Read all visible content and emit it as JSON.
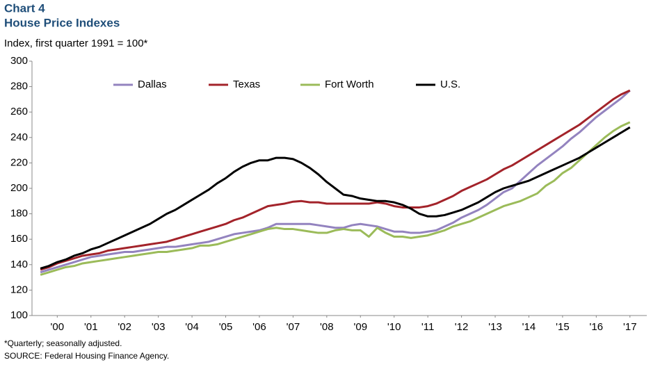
{
  "chart_data": {
    "type": "line",
    "title": "Chart 4",
    "subtitle": "House Price Indexes",
    "y_label": "Index, first quarter 1991 = 100*",
    "notes": [
      "*Quarterly; seasonally adjusted.",
      "SOURCE: Federal Housing Finance Agency."
    ],
    "x": [
      2000,
      2000.25,
      2000.5,
      2000.75,
      2001,
      2001.25,
      2001.5,
      2001.75,
      2002,
      2002.25,
      2002.5,
      2002.75,
      2003,
      2003.25,
      2003.5,
      2003.75,
      2004,
      2004.25,
      2004.5,
      2004.75,
      2005,
      2005.25,
      2005.5,
      2005.75,
      2006,
      2006.25,
      2006.5,
      2006.75,
      2007,
      2007.25,
      2007.5,
      2007.75,
      2008,
      2008.25,
      2008.5,
      2008.75,
      2009,
      2009.25,
      2009.5,
      2009.75,
      2010,
      2010.25,
      2010.5,
      2010.75,
      2011,
      2011.25,
      2011.5,
      2011.75,
      2012,
      2012.25,
      2012.5,
      2012.75,
      2013,
      2013.25,
      2013.5,
      2013.75,
      2014,
      2014.25,
      2014.5,
      2014.75,
      2015,
      2015.25,
      2015.5,
      2015.75,
      2016,
      2016.25,
      2016.5,
      2016.75,
      2017,
      2017.25,
      2017.5
    ],
    "series": [
      {
        "name": "Dallas",
        "color": "#9383bf",
        "values": [
          134,
          136,
          138,
          140,
          142,
          144,
          146,
          147,
          148,
          149,
          150,
          150,
          151,
          152,
          153,
          154,
          154,
          155,
          156,
          157,
          158,
          160,
          162,
          164,
          165,
          166,
          167,
          169,
          172,
          172,
          172,
          172,
          172,
          171,
          170,
          169,
          169,
          171,
          172,
          171,
          170,
          168,
          166,
          166,
          165,
          165,
          166,
          167,
          170,
          173,
          177,
          180,
          183,
          187,
          192,
          197,
          200,
          206,
          212,
          218,
          223,
          228,
          233,
          239,
          244,
          250,
          256,
          261,
          266,
          271,
          277
        ]
      },
      {
        "name": "Texas",
        "color": "#a3232a",
        "values": [
          136,
          138,
          141,
          143,
          145,
          147,
          148,
          149,
          151,
          152,
          153,
          154,
          155,
          156,
          157,
          158,
          160,
          162,
          164,
          166,
          168,
          170,
          172,
          175,
          177,
          180,
          183,
          186,
          187,
          188,
          189.5,
          190,
          189,
          189,
          188,
          188,
          188,
          188,
          188,
          188,
          189,
          188,
          186,
          185,
          185,
          185,
          186,
          188,
          191,
          194,
          198,
          201,
          204,
          207,
          211,
          215,
          218,
          222,
          226,
          230,
          234,
          238,
          242,
          246,
          250,
          255,
          260,
          265,
          270,
          274,
          277
        ]
      },
      {
        "name": "Fort Worth",
        "color": "#9bbb59",
        "values": [
          132,
          134,
          136,
          138,
          139,
          141,
          142,
          143,
          144,
          145,
          146,
          147,
          148,
          149,
          150,
          150,
          151,
          152,
          153,
          155,
          155,
          156,
          158,
          160,
          162,
          164,
          166,
          168,
          169,
          168,
          168,
          167,
          166,
          165,
          165,
          167,
          168,
          167,
          167,
          162,
          169,
          165,
          162,
          162,
          161,
          162,
          163,
          165,
          167,
          170,
          172,
          174,
          177,
          180,
          183,
          186,
          188,
          190,
          193,
          196,
          202,
          206,
          212,
          216,
          222,
          228,
          234,
          240,
          245,
          249,
          252
        ]
      },
      {
        "name": "U.S.",
        "color": "#000000",
        "values": [
          137,
          139,
          142,
          144,
          147,
          149,
          152,
          154,
          157,
          160,
          163,
          166,
          169,
          172,
          176,
          180,
          183,
          187,
          191,
          195,
          199,
          204,
          208,
          213,
          217,
          220,
          222,
          222,
          224,
          224,
          223,
          220,
          216,
          211,
          205,
          200,
          195,
          194,
          192,
          191,
          190,
          190,
          189,
          187,
          184,
          180,
          178,
          178,
          179,
          181,
          183,
          186,
          189,
          193,
          197,
          200,
          202,
          204,
          206,
          209,
          212,
          215,
          218,
          221,
          224,
          228,
          232,
          236,
          240,
          244,
          248
        ]
      }
    ],
    "xlim": [
      1999.75,
      2018
    ],
    "xticks": [
      {
        "value": 2000.5,
        "label": "'00"
      },
      {
        "value": 2001.5,
        "label": "'01"
      },
      {
        "value": 2002.5,
        "label": "'02"
      },
      {
        "value": 2003.5,
        "label": "'03"
      },
      {
        "value": 2004.5,
        "label": "'04"
      },
      {
        "value": 2005.5,
        "label": "'05"
      },
      {
        "value": 2006.5,
        "label": "'06"
      },
      {
        "value": 2007.5,
        "label": "'07"
      },
      {
        "value": 2008.5,
        "label": "'08"
      },
      {
        "value": 2009.5,
        "label": "'09"
      },
      {
        "value": 2010.5,
        "label": "'10"
      },
      {
        "value": 2011.5,
        "label": "'11"
      },
      {
        "value": 2012.5,
        "label": "'12"
      },
      {
        "value": 2013.5,
        "label": "'13"
      },
      {
        "value": 2014.5,
        "label": "'14"
      },
      {
        "value": 2015.5,
        "label": "'15"
      },
      {
        "value": 2016.5,
        "label": "'16"
      },
      {
        "value": 2017.5,
        "label": "'17"
      }
    ],
    "ylim": [
      100,
      300
    ],
    "yticks": [
      100,
      120,
      140,
      160,
      180,
      200,
      220,
      240,
      260,
      280,
      300
    ],
    "grid": false,
    "legend": "top"
  }
}
